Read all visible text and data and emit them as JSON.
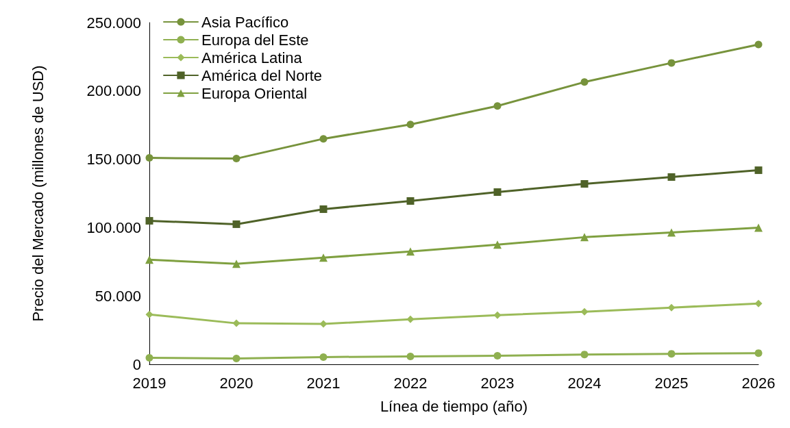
{
  "chart_data": {
    "type": "line",
    "xlabel": "Línea de tiempo (año)",
    "ylabel": "Precio del Mercado (millones de USD)",
    "categories": [
      "2019",
      "2020",
      "2021",
      "2022",
      "2023",
      "2024",
      "2025",
      "2026"
    ],
    "ylim": [
      0,
      250000
    ],
    "yticks": [
      {
        "value": 0,
        "label": "0"
      },
      {
        "value": 50000,
        "label": "50.000"
      },
      {
        "value": 100000,
        "label": "100.000"
      },
      {
        "value": 150000,
        "label": "150.000"
      },
      {
        "value": 200000,
        "label": "200.000"
      },
      {
        "value": 250000,
        "label": "250.000"
      }
    ],
    "grid": false,
    "legend": "top left",
    "line_style": "solid",
    "series": [
      {
        "name": "Asia Pacífico",
        "color": "#77933c",
        "marker": "circle",
        "values": [
          151000,
          150500,
          165000,
          175500,
          189000,
          206500,
          220500,
          234000
        ]
      },
      {
        "name": "Europa del Este",
        "color": "#8fb050",
        "marker": "circle",
        "values": [
          4800,
          4300,
          5300,
          5800,
          6300,
          7200,
          7700,
          8200
        ]
      },
      {
        "name": "América Latina",
        "color": "#9bbb59",
        "marker": "diamond",
        "values": [
          36500,
          30000,
          29500,
          33000,
          36000,
          38500,
          41500,
          44500
        ]
      },
      {
        "name": "América del Norte",
        "color": "#4f6228",
        "marker": "square",
        "values": [
          105000,
          102500,
          113500,
          119500,
          126000,
          132000,
          137000,
          142000
        ]
      },
      {
        "name": "Europa Oriental",
        "color": "#7fa040",
        "marker": "triangle",
        "values": [
          76500,
          73500,
          78000,
          82500,
          87500,
          93000,
          96500,
          100000
        ]
      }
    ]
  }
}
